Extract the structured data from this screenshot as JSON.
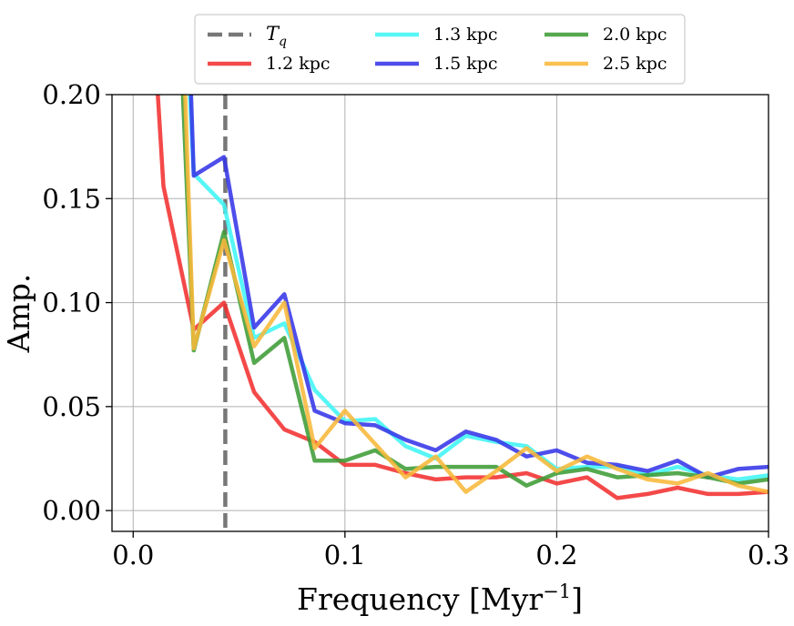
{
  "chart_data": {
    "type": "line",
    "xlabel": "Frequency [Myr",
    "xlabel_sup": "−1",
    "xlabel_close": "]",
    "ylabel": "Amp.",
    "xlim": [
      -0.01,
      0.3
    ],
    "ylim": [
      -0.01,
      0.2
    ],
    "x_ticks": [
      0.0,
      0.1,
      0.2,
      0.3
    ],
    "x_tick_labels": [
      "0.0",
      "0.1",
      "0.2",
      "0.3"
    ],
    "y_ticks": [
      0.0,
      0.05,
      0.1,
      0.15,
      0.2
    ],
    "y_tick_labels": [
      "0.00",
      "0.05",
      "0.10",
      "0.15",
      "0.20"
    ],
    "grid": true,
    "legend_position": "top-center",
    "reference_line": {
      "name": "T",
      "name_sub": "q",
      "x": 0.0435,
      "color": "#777777",
      "style": "dashed"
    },
    "x": [
      0.0143,
      0.0286,
      0.0429,
      0.0571,
      0.0714,
      0.0857,
      0.1,
      0.1143,
      0.1286,
      0.1429,
      0.1571,
      0.1714,
      0.1857,
      0.2,
      0.2143,
      0.2286,
      0.2429,
      0.2571,
      0.2714,
      0.2857,
      0.3
    ],
    "series": [
      {
        "name": "1.2 kpc",
        "color": "#f23030",
        "x": [
          0.0086,
          0.0143,
          0.0286,
          0.0429,
          0.0571,
          0.0714,
          0.0857,
          0.1,
          0.1143,
          0.1286,
          0.1429,
          0.1571,
          0.1714,
          0.1857,
          0.2,
          0.2143,
          0.2286,
          0.2429,
          0.2571,
          0.2714,
          0.2857,
          0.3
        ],
        "values": [
          0.25,
          0.156,
          0.087,
          0.1,
          0.057,
          0.039,
          0.033,
          0.022,
          0.022,
          0.018,
          0.015,
          0.016,
          0.016,
          0.018,
          0.013,
          0.016,
          0.006,
          0.008,
          0.011,
          0.008,
          0.008,
          0.009
        ]
      },
      {
        "name": "1.3 kpc",
        "color": "#40f5f5",
        "x": [
          0.0243,
          0.0286,
          0.0429,
          0.0571,
          0.0714,
          0.0857,
          0.1,
          0.1143,
          0.1286,
          0.1429,
          0.1571,
          0.1714,
          0.1857,
          0.2,
          0.2143,
          0.2286,
          0.2429,
          0.2571,
          0.2714,
          0.2857,
          0.3
        ],
        "values": [
          0.25,
          0.162,
          0.147,
          0.083,
          0.09,
          0.058,
          0.043,
          0.044,
          0.031,
          0.025,
          0.036,
          0.033,
          0.031,
          0.02,
          0.021,
          0.021,
          0.017,
          0.021,
          0.017,
          0.015,
          0.017
        ]
      },
      {
        "name": "1.5 kpc",
        "color": "#3535e8",
        "x": [
          0.0257,
          0.0286,
          0.0429,
          0.0571,
          0.0714,
          0.0857,
          0.1,
          0.1143,
          0.1286,
          0.1429,
          0.1571,
          0.1714,
          0.1857,
          0.2,
          0.2143,
          0.2286,
          0.2429,
          0.2571,
          0.2714,
          0.2857,
          0.3
        ],
        "values": [
          0.25,
          0.161,
          0.17,
          0.088,
          0.104,
          0.048,
          0.042,
          0.041,
          0.034,
          0.029,
          0.038,
          0.034,
          0.026,
          0.029,
          0.023,
          0.022,
          0.019,
          0.024,
          0.016,
          0.02,
          0.021
        ]
      },
      {
        "name": "2.0 kpc",
        "color": "#3d9c35",
        "x": [
          0.0214,
          0.0286,
          0.0429,
          0.0571,
          0.0714,
          0.0857,
          0.1,
          0.1143,
          0.1286,
          0.1429,
          0.1571,
          0.1714,
          0.1857,
          0.2,
          0.2143,
          0.2286,
          0.2429,
          0.2571,
          0.2714,
          0.2857,
          0.3
        ],
        "values": [
          0.25,
          0.077,
          0.134,
          0.071,
          0.083,
          0.024,
          0.024,
          0.029,
          0.02,
          0.021,
          0.021,
          0.021,
          0.012,
          0.018,
          0.02,
          0.016,
          0.017,
          0.018,
          0.016,
          0.013,
          0.015
        ]
      },
      {
        "name": "2.5 kpc",
        "color": "#f8b83a",
        "x": [
          0.0229,
          0.0286,
          0.0429,
          0.0571,
          0.0714,
          0.0857,
          0.1,
          0.1143,
          0.1286,
          0.1429,
          0.1571,
          0.1714,
          0.1857,
          0.2,
          0.2143,
          0.2286,
          0.2429,
          0.2571,
          0.2714,
          0.2857,
          0.3
        ],
        "values": [
          0.25,
          0.078,
          0.13,
          0.079,
          0.1,
          0.03,
          0.048,
          0.032,
          0.016,
          0.026,
          0.009,
          0.019,
          0.03,
          0.019,
          0.026,
          0.02,
          0.015,
          0.013,
          0.018,
          0.012,
          0.009
        ]
      }
    ]
  }
}
